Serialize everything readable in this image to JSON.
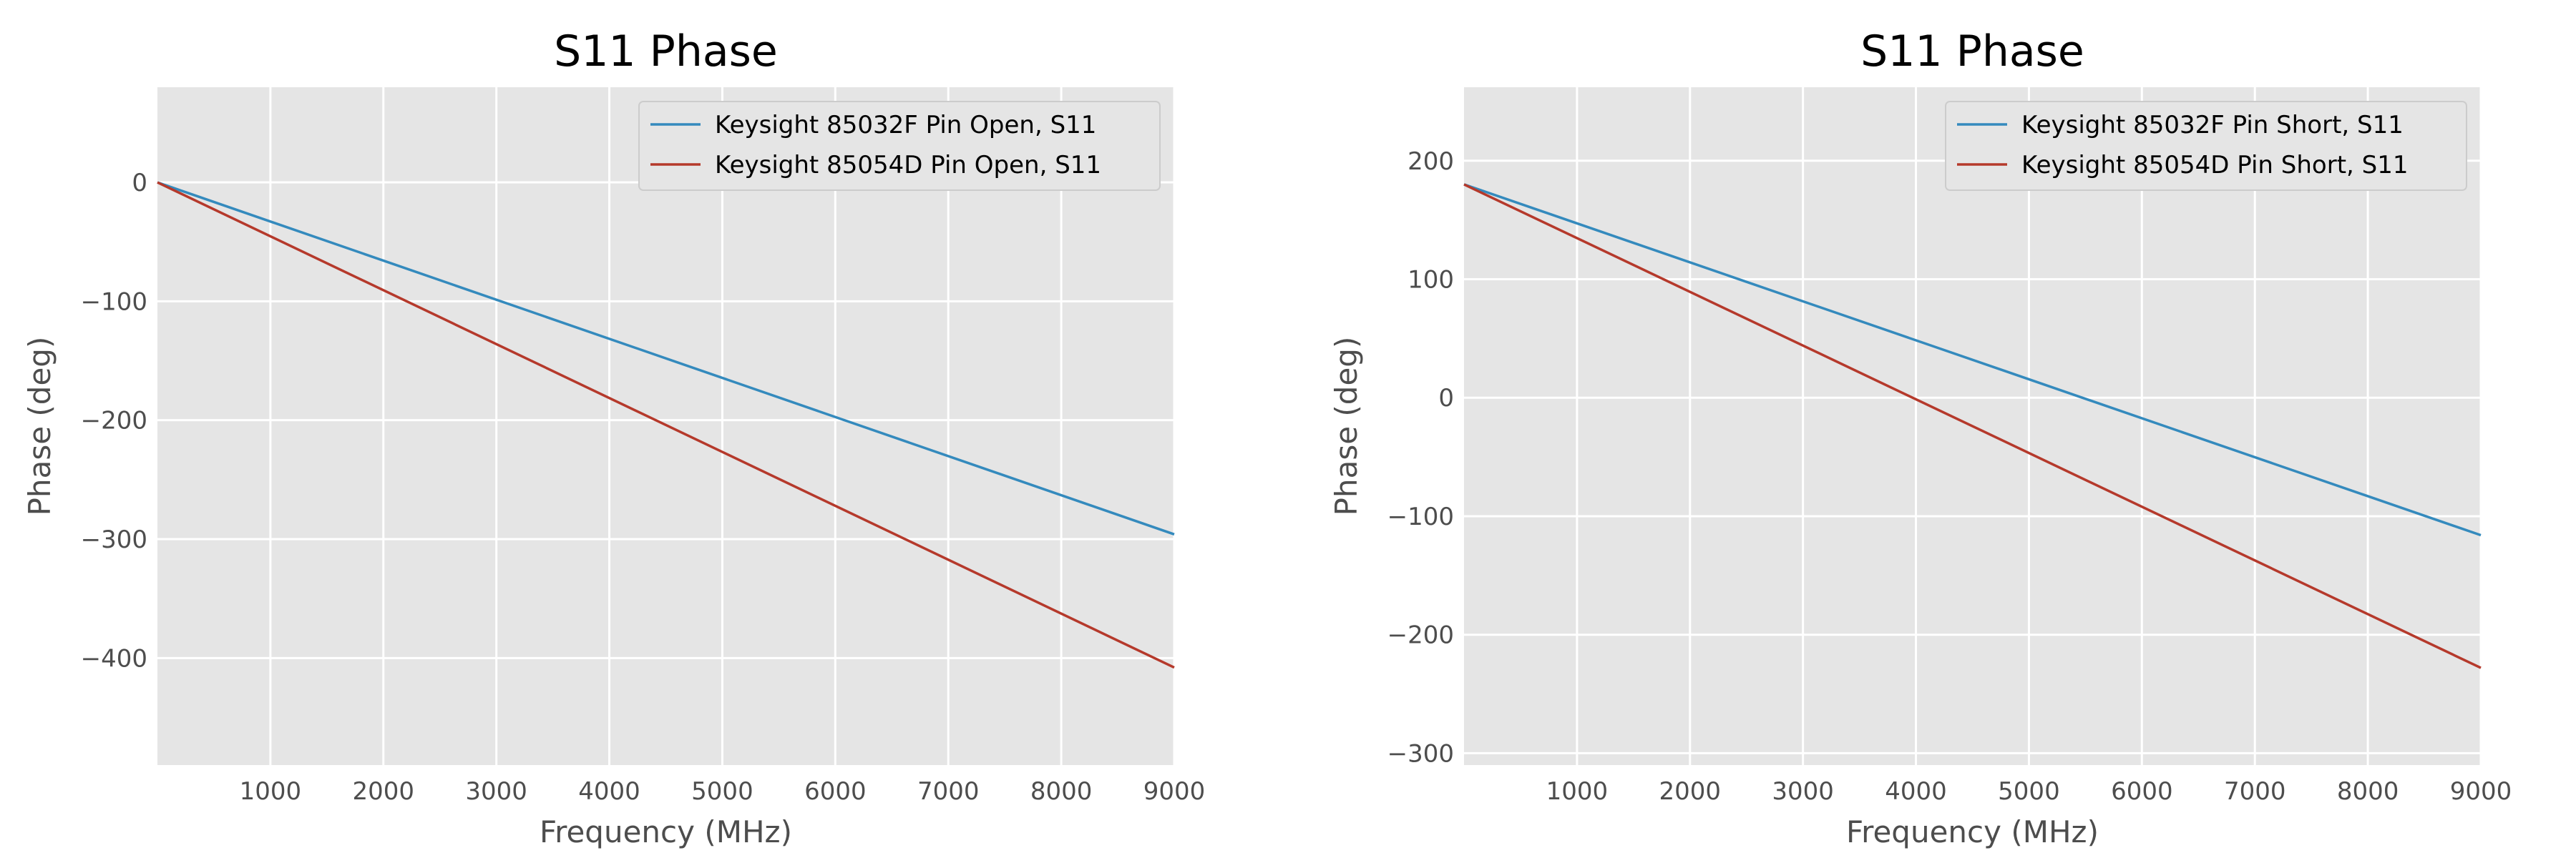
{
  "chart_data": [
    {
      "type": "line",
      "title": "S11 Phase",
      "xlabel": "Frequency (MHz)",
      "ylabel": "Phase (deg)",
      "xlim": [
        0,
        9000
      ],
      "ylim": [
        -490,
        80
      ],
      "xticks": [
        1000,
        2000,
        3000,
        4000,
        5000,
        6000,
        7000,
        8000,
        9000
      ],
      "yticks": [
        0,
        -100,
        -200,
        -300,
        -400
      ],
      "grid": true,
      "legend_position": "top-right",
      "series": [
        {
          "name": "Keysight 85032F Pin Open, S11",
          "color": "#348abd",
          "x": [
            0,
            9000
          ],
          "y": [
            0,
            -296
          ]
        },
        {
          "name": "Keysight 85054D Pin Open, S11",
          "color": "#b5392b",
          "x": [
            0,
            9000
          ],
          "y": [
            0,
            -408
          ]
        }
      ]
    },
    {
      "type": "line",
      "title": "S11 Phase",
      "xlabel": "Frequency (MHz)",
      "ylabel": "Phase (deg)",
      "xlim": [
        0,
        9000
      ],
      "ylim": [
        -310,
        262
      ],
      "xticks": [
        1000,
        2000,
        3000,
        4000,
        5000,
        6000,
        7000,
        8000,
        9000
      ],
      "yticks": [
        200,
        100,
        0,
        -100,
        -200,
        -300
      ],
      "grid": true,
      "legend_position": "top-right",
      "series": [
        {
          "name": "Keysight 85032F Pin Short, S11",
          "color": "#348abd",
          "x": [
            0,
            9000
          ],
          "y": [
            180,
            -116
          ]
        },
        {
          "name": "Keysight 85054D Pin Short, S11",
          "color": "#b5392b",
          "x": [
            0,
            9000
          ],
          "y": [
            180,
            -228
          ]
        }
      ]
    }
  ]
}
